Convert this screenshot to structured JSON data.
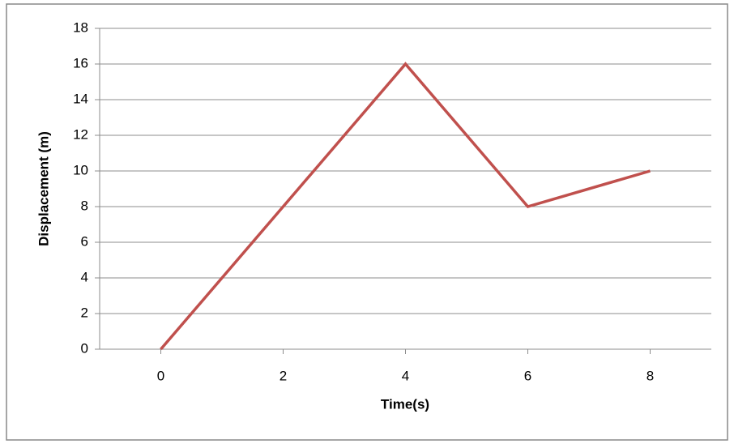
{
  "chart_data": {
    "type": "line",
    "x_label": "Time(s)",
    "y_label": "Displacement (m)",
    "x": [
      0,
      2,
      4,
      6,
      8
    ],
    "values": [
      0,
      8,
      16,
      8,
      10
    ],
    "color": "#c0504d",
    "xlim": [
      -1,
      9
    ],
    "xticks": [
      0,
      2,
      4,
      6,
      8
    ],
    "ylim": [
      0,
      18
    ],
    "yticks": [
      0,
      2,
      4,
      6,
      8,
      10,
      12,
      14,
      16,
      18
    ],
    "grid": true
  }
}
